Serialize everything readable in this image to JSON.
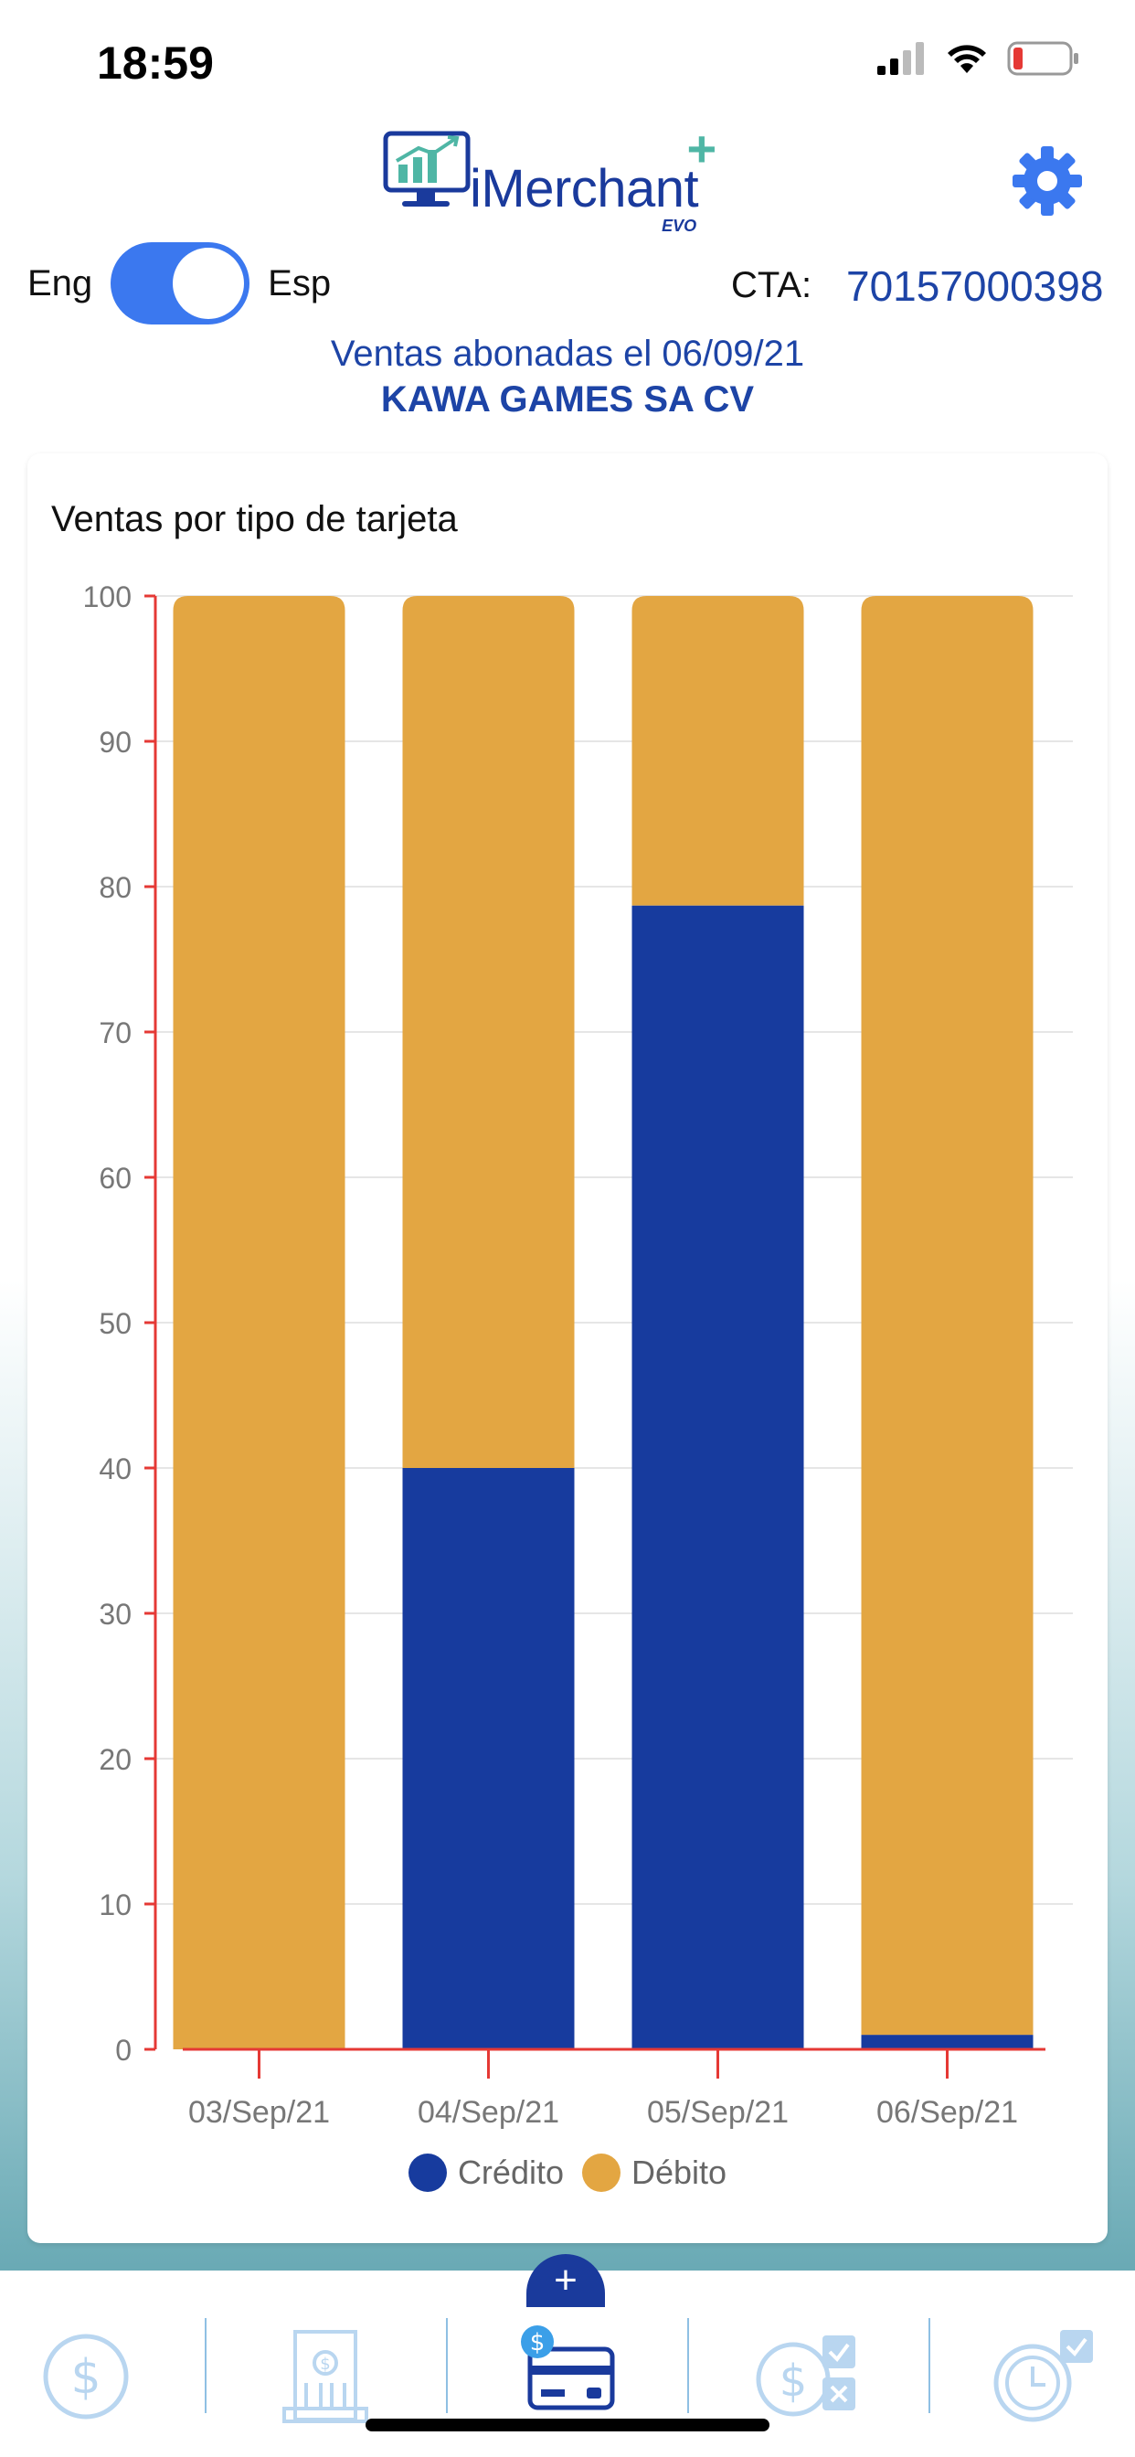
{
  "status_bar": {
    "time": "18:59"
  },
  "header": {
    "app_name": "iMerchant",
    "app_plus": "+",
    "brand_mark": "EVO",
    "lang_left": "Eng",
    "lang_right": "Esp",
    "cta_label": "CTA:",
    "cta_value": "70157000398",
    "ventas_line": "Ventas abonadas el  06/09/21",
    "merchant_name": "KAWA GAMES SA CV"
  },
  "chart_data": {
    "type": "bar",
    "stacked": true,
    "title": "Ventas por tipo de tarjeta",
    "categories": [
      "03/Sep/21",
      "04/Sep/21",
      "05/Sep/21",
      "06/Sep/21"
    ],
    "series": [
      {
        "name": "Crédito",
        "values": [
          0,
          40,
          78.7,
          1
        ],
        "color": "#173b9e"
      },
      {
        "name": "Débito",
        "values": [
          100,
          60,
          21.3,
          99
        ],
        "color": "#e3a642"
      }
    ],
    "ylim": [
      0,
      100
    ],
    "yticks": [
      0,
      10,
      20,
      30,
      40,
      50,
      60,
      70,
      80,
      90,
      100
    ],
    "grid": true,
    "legend": "bottom",
    "axis_color": "#e53935"
  },
  "tabs": [
    {
      "name": "ventas",
      "icon": "dollar-circle-icon",
      "active": false
    },
    {
      "name": "banco",
      "icon": "bank-icon",
      "label": "BANCO",
      "active": false
    },
    {
      "name": "tarjetas",
      "icon": "card-dollar-icon",
      "active": true
    },
    {
      "name": "calculos",
      "icon": "calculator-icon",
      "active": false
    },
    {
      "name": "historial",
      "icon": "clock-check-icon",
      "active": false
    }
  ],
  "plus_button": "+",
  "colors": {
    "primary": "#1a3a9c",
    "inactive_tab": "#b9d6f0",
    "toggle_on": "#3b78ef"
  }
}
